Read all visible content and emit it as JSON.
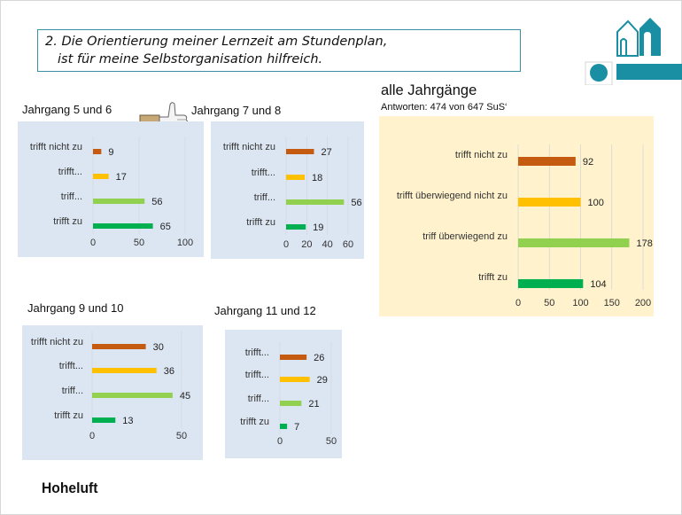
{
  "question": {
    "line1": "2. Die Orientierung meiner Lernzeit am Stundenplan,",
    "line2": "ist für meine Selbstorganisation hilfreich."
  },
  "colors": {
    "bar_colors": [
      "#c55a11",
      "#ffc000",
      "#92d050",
      "#00b050"
    ],
    "panel_blue": "#dce6f2",
    "panel_yellow": "#fff2cc",
    "teal": "#1a8fa3"
  },
  "footer": "Hoheluft",
  "chart_data": [
    {
      "type": "bar",
      "orientation": "horizontal",
      "title": "Jahrgang 5 und 6",
      "categories": [
        "trifft nicht zu",
        "trifft...",
        "triff...",
        "trifft zu"
      ],
      "values": [
        9,
        17,
        56,
        65
      ],
      "xlim": [
        0,
        100
      ],
      "xticks": [
        0,
        50,
        100
      ]
    },
    {
      "type": "bar",
      "orientation": "horizontal",
      "title": "Jahrgang 7 und 8",
      "categories": [
        "trifft nicht zu",
        "trifft...",
        "triff...",
        "trifft zu"
      ],
      "values": [
        27,
        18,
        56,
        19
      ],
      "xlim": [
        0,
        60
      ],
      "xticks": [
        0,
        20,
        40,
        60
      ]
    },
    {
      "type": "bar",
      "orientation": "horizontal",
      "title": "alle Jahrgänge",
      "subtitle": "Antworten: 474 von 647 SuS‘",
      "categories": [
        "trifft nicht zu",
        "trifft überwiegend nicht zu",
        "triff überwiegend zu",
        "trifft zu"
      ],
      "values": [
        92,
        100,
        178,
        104
      ],
      "xlim": [
        0,
        200
      ],
      "xticks": [
        0,
        50,
        100,
        150,
        200
      ]
    },
    {
      "type": "bar",
      "orientation": "horizontal",
      "title": "Jahrgang 9 und 10",
      "categories": [
        "trifft nicht zu",
        "trifft...",
        "triff...",
        "trifft zu"
      ],
      "values": [
        30,
        36,
        45,
        13
      ],
      "xlim": [
        0,
        50
      ],
      "xticks": [
        0,
        50
      ]
    },
    {
      "type": "bar",
      "orientation": "horizontal",
      "title": "Jahrgang 11 und 12",
      "categories": [
        "trifft...",
        "trifft...",
        "triff...",
        "trifft zu"
      ],
      "values": [
        26,
        29,
        21,
        7
      ],
      "xlim": [
        0,
        50
      ],
      "xticks": [
        0,
        50
      ]
    }
  ]
}
